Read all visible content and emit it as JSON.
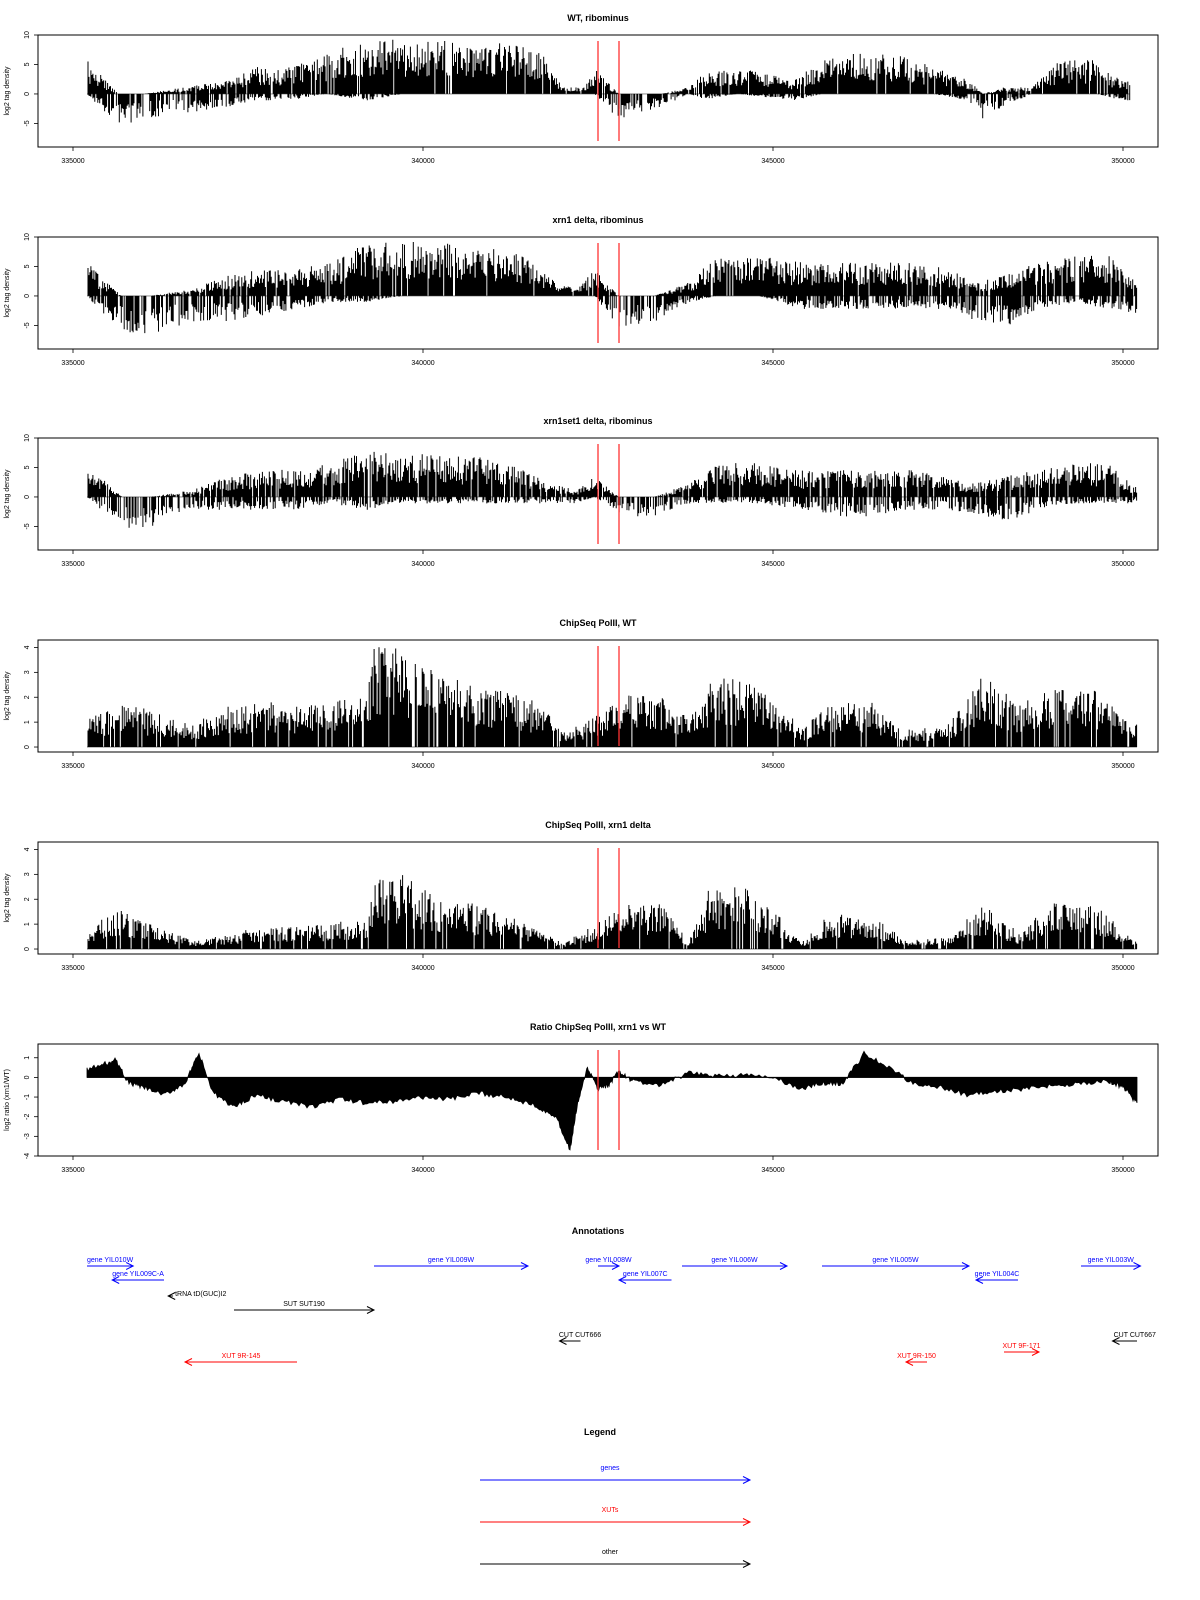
{
  "chart_data": [
    {
      "type": "bar",
      "title": "WT, ribominus",
      "ylabel": "log2 tag density",
      "xlabel": "",
      "xlim": [
        334500,
        350500
      ],
      "ylim": [
        -9,
        10
      ],
      "yticks": [
        -5,
        0,
        5,
        10
      ],
      "xticks": [
        335000,
        340000,
        345000,
        350000
      ],
      "marker_lines": [
        342500,
        342800
      ],
      "profile": [
        [
          335200,
          5,
          0
        ],
        [
          335650,
          0,
          -5
        ],
        [
          336000,
          0,
          -4
        ],
        [
          337200,
          2,
          -2
        ],
        [
          337600,
          4,
          -1
        ],
        [
          338100,
          4,
          -1
        ],
        [
          338600,
          6,
          0
        ],
        [
          339200,
          8,
          -1
        ],
        [
          339700,
          8,
          0
        ],
        [
          340300,
          8,
          0
        ],
        [
          340800,
          7,
          0
        ],
        [
          341200,
          8,
          0
        ],
        [
          341700,
          6,
          0
        ],
        [
          342000,
          1,
          0
        ],
        [
          342300,
          1,
          0
        ],
        [
          342450,
          4,
          0
        ],
        [
          342800,
          0,
          -4
        ],
        [
          343400,
          0,
          -2
        ],
        [
          343800,
          1,
          0
        ],
        [
          344000,
          3,
          -1
        ],
        [
          344500,
          4,
          0
        ],
        [
          345300,
          2,
          -1
        ],
        [
          345700,
          5,
          0
        ],
        [
          346200,
          6,
          0
        ],
        [
          346700,
          6,
          0
        ],
        [
          347300,
          4,
          0
        ],
        [
          347800,
          2,
          -1
        ],
        [
          348000,
          0,
          -4
        ],
        [
          348300,
          1,
          -2
        ],
        [
          348700,
          1,
          0
        ],
        [
          349100,
          5,
          0
        ],
        [
          349600,
          5,
          0
        ],
        [
          350000,
          2,
          -1
        ]
      ]
    },
    {
      "type": "bar",
      "title": "xrn1 delta, ribominus",
      "ylabel": "log2 tag density",
      "xlabel": "",
      "xlim": [
        334500,
        350500
      ],
      "ylim": [
        -9,
        10
      ],
      "yticks": [
        -5,
        0,
        5,
        10
      ],
      "xticks": [
        335000,
        340000,
        345000,
        350000
      ],
      "marker_lines": [
        342500,
        342800
      ],
      "profile": [
        [
          335200,
          5,
          0
        ],
        [
          335700,
          0,
          -6
        ],
        [
          336100,
          0,
          -6
        ],
        [
          336700,
          1,
          -4
        ],
        [
          337200,
          3,
          -4
        ],
        [
          337700,
          4,
          -3
        ],
        [
          338200,
          4,
          -2
        ],
        [
          338700,
          5,
          -1
        ],
        [
          339200,
          8,
          -1
        ],
        [
          339700,
          8,
          0
        ],
        [
          340300,
          8,
          0
        ],
        [
          340800,
          7,
          0
        ],
        [
          341300,
          7,
          0
        ],
        [
          341900,
          2,
          0
        ],
        [
          342200,
          1,
          0
        ],
        [
          342450,
          4,
          0
        ],
        [
          342800,
          0,
          -5
        ],
        [
          343300,
          0,
          -4
        ],
        [
          343800,
          2,
          -1
        ],
        [
          344200,
          6,
          0
        ],
        [
          344800,
          6,
          0
        ],
        [
          345400,
          5,
          -2
        ],
        [
          345900,
          5,
          -2
        ],
        [
          346400,
          5,
          -2
        ],
        [
          347000,
          5,
          -2
        ],
        [
          347500,
          4,
          -2
        ],
        [
          347900,
          2,
          -4
        ],
        [
          348300,
          3,
          -5
        ],
        [
          348800,
          5,
          -2
        ],
        [
          349300,
          6,
          -1
        ],
        [
          349800,
          6,
          -2
        ],
        [
          350100,
          3,
          -3
        ]
      ]
    },
    {
      "type": "bar",
      "title": "xrn1set1 delta, ribominus",
      "ylabel": "log2 tag density",
      "xlabel": "",
      "xlim": [
        334500,
        350500
      ],
      "ylim": [
        -9,
        10
      ],
      "yticks": [
        -5,
        0,
        5,
        10
      ],
      "xticks": [
        335000,
        340000,
        345000,
        350000
      ],
      "marker_lines": [
        342500,
        342800
      ],
      "profile": [
        [
          335200,
          5,
          0
        ],
        [
          335700,
          0,
          -5
        ],
        [
          336100,
          0,
          -5
        ],
        [
          336700,
          1,
          -2
        ],
        [
          337200,
          3,
          -2
        ],
        [
          337700,
          4,
          -2
        ],
        [
          338200,
          4,
          -2
        ],
        [
          338700,
          5,
          -1
        ],
        [
          339200,
          7,
          -2
        ],
        [
          339700,
          7,
          -1
        ],
        [
          340300,
          6,
          -1
        ],
        [
          340800,
          6,
          -1
        ],
        [
          341300,
          5,
          -1
        ],
        [
          341800,
          2,
          -1
        ],
        [
          342200,
          1,
          -1
        ],
        [
          342450,
          3,
          0
        ],
        [
          342800,
          0,
          -3
        ],
        [
          343300,
          0,
          -3
        ],
        [
          343800,
          2,
          -1
        ],
        [
          344200,
          5,
          -1
        ],
        [
          344800,
          5,
          -1
        ],
        [
          345400,
          4,
          -2
        ],
        [
          345900,
          4,
          -3
        ],
        [
          346400,
          4,
          -3
        ],
        [
          347000,
          4,
          -2
        ],
        [
          347500,
          3,
          -2
        ],
        [
          347900,
          2,
          -3
        ],
        [
          348300,
          3,
          -4
        ],
        [
          348800,
          4,
          -2
        ],
        [
          349300,
          5,
          -1
        ],
        [
          349800,
          5,
          -1
        ],
        [
          350100,
          2,
          -1
        ]
      ]
    },
    {
      "type": "bar",
      "title": "ChipSeq PolII, WT",
      "ylabel": "log2 tag density",
      "xlabel": "",
      "xlim": [
        334500,
        350500
      ],
      "ylim": [
        -0.2,
        4.3
      ],
      "yticks": [
        0,
        1,
        2,
        3,
        4
      ],
      "xticks": [
        335000,
        340000,
        345000,
        350000
      ],
      "marker_lines": [
        342500,
        342800
      ],
      "profile": [
        [
          335200,
          1,
          0
        ],
        [
          335700,
          1.6,
          0
        ],
        [
          336200,
          1.2,
          0
        ],
        [
          336700,
          0.8,
          0
        ],
        [
          337200,
          1.4,
          0
        ],
        [
          337700,
          1.6,
          0
        ],
        [
          338200,
          1.5,
          0
        ],
        [
          338700,
          1.6,
          0
        ],
        [
          339200,
          1.8,
          0
        ],
        [
          339300,
          3.6,
          0
        ],
        [
          339700,
          3.4,
          0
        ],
        [
          340200,
          2.6,
          0
        ],
        [
          340700,
          2.2,
          0
        ],
        [
          341200,
          2,
          0
        ],
        [
          341700,
          1.5,
          0
        ],
        [
          342000,
          0.5,
          0
        ],
        [
          342400,
          1,
          0
        ],
        [
          342900,
          1.8,
          0
        ],
        [
          343400,
          1.8,
          0
        ],
        [
          343800,
          1,
          0
        ],
        [
          344100,
          2.4,
          0
        ],
        [
          344600,
          2.4,
          0
        ],
        [
          345100,
          1.6,
          0
        ],
        [
          345400,
          0.6,
          0
        ],
        [
          345800,
          1.5,
          0
        ],
        [
          346400,
          1.6,
          0
        ],
        [
          346900,
          0.6,
          0
        ],
        [
          347500,
          0.8,
          0
        ],
        [
          348000,
          2.5,
          0
        ],
        [
          348500,
          1.6,
          0
        ],
        [
          349000,
          2,
          0
        ],
        [
          349600,
          2,
          0
        ],
        [
          350100,
          1,
          0
        ]
      ]
    },
    {
      "type": "bar",
      "title": "ChipSeq PolII, xrn1 delta",
      "ylabel": "log2 tag density",
      "xlabel": "",
      "xlim": [
        334500,
        350500
      ],
      "ylim": [
        -0.2,
        4.3
      ],
      "yticks": [
        0,
        1,
        2,
        3,
        4
      ],
      "xticks": [
        335000,
        340000,
        345000,
        350000
      ],
      "marker_lines": [
        342500,
        342800
      ],
      "profile": [
        [
          335200,
          0.8,
          0
        ],
        [
          335700,
          1.4,
          0
        ],
        [
          336200,
          0.8,
          0
        ],
        [
          336700,
          0.3,
          0
        ],
        [
          337200,
          0.5,
          0
        ],
        [
          337700,
          0.8,
          0
        ],
        [
          338200,
          0.8,
          0
        ],
        [
          338700,
          0.9,
          0
        ],
        [
          339200,
          1.2,
          0
        ],
        [
          339300,
          2.4,
          0
        ],
        [
          339700,
          2.6,
          0
        ],
        [
          340200,
          1.8,
          0
        ],
        [
          340700,
          1.6,
          0
        ],
        [
          341200,
          1.2,
          0
        ],
        [
          341700,
          0.6,
          0
        ],
        [
          342000,
          0.2,
          0
        ],
        [
          342400,
          0.8,
          0
        ],
        [
          342900,
          1.6,
          0
        ],
        [
          343400,
          1.6,
          0
        ],
        [
          343800,
          0.3,
          0
        ],
        [
          344100,
          2.2,
          0
        ],
        [
          344600,
          2.2,
          0
        ],
        [
          345100,
          1.2,
          0
        ],
        [
          345400,
          0.2,
          0
        ],
        [
          345800,
          1.2,
          0
        ],
        [
          346400,
          1.2,
          0
        ],
        [
          346900,
          0.3,
          0
        ],
        [
          347500,
          0.4,
          0
        ],
        [
          348000,
          1.6,
          0
        ],
        [
          348500,
          0.6,
          0
        ],
        [
          349000,
          1.6,
          0
        ],
        [
          349600,
          1.6,
          0
        ],
        [
          350100,
          0.4,
          0
        ]
      ]
    },
    {
      "type": "area",
      "title": "Ratio ChipSeq PolII, xrn1 vs WT",
      "ylabel": "log2 ratio (xrn1/WT)",
      "xlabel": "",
      "xlim": [
        334500,
        350500
      ],
      "ylim": [
        -4,
        1.7
      ],
      "yticks": [
        -4,
        -3,
        -2,
        -1,
        0,
        1
      ],
      "xticks": [
        335000,
        340000,
        345000,
        350000
      ],
      "marker_lines": [
        342500,
        342800
      ],
      "x": [
        335200,
        335400,
        335600,
        335800,
        336000,
        336300,
        336600,
        336800,
        337000,
        337300,
        337600,
        338000,
        338400,
        338800,
        339200,
        339600,
        340000,
        340400,
        340800,
        341200,
        341600,
        341900,
        342100,
        342200,
        342350,
        342500,
        342650,
        342800,
        343000,
        343400,
        343800,
        344200,
        344600,
        345000,
        345400,
        345700,
        346000,
        346300,
        346600,
        347000,
        347400,
        347800,
        348200,
        348600,
        349000,
        349400,
        349800,
        350000,
        350200
      ],
      "y": [
        0.4,
        0.6,
        0.9,
        -0.3,
        -0.5,
        -0.9,
        -0.3,
        1.2,
        -0.8,
        -1.5,
        -0.9,
        -1.2,
        -1.5,
        -1.1,
        -1.3,
        -1.2,
        -1.0,
        -1.1,
        -0.8,
        -1.0,
        -1.4,
        -2.0,
        -3.7,
        -1.5,
        0.5,
        -0.6,
        -0.4,
        0.3,
        -0.2,
        -0.4,
        0.2,
        0.1,
        0.1,
        0.0,
        -0.6,
        -0.3,
        -0.3,
        1.2,
        0.6,
        -0.3,
        -0.5,
        -0.9,
        -0.7,
        -0.6,
        -0.4,
        -0.3,
        -0.2,
        -0.5,
        -1.3
      ]
    }
  ],
  "annotations": {
    "title": "Annotations",
    "features": [
      {
        "label": "gene YIL010W",
        "start": 335200,
        "end": 335860,
        "strand": "+",
        "color": "#0000ff"
      },
      {
        "label": "gene YIL009C-A",
        "start": 335560,
        "end": 336300,
        "strand": "-",
        "color": "#0000ff"
      },
      {
        "label": "tRNA tD(GUC)I2",
        "start": 336360,
        "end": 336430,
        "strand": "-",
        "color": "#000000"
      },
      {
        "label": "SUT SUT190",
        "start": 337300,
        "end": 339300,
        "strand": "+",
        "color": "#000000"
      },
      {
        "label": "XUT 9R-145",
        "start": 336600,
        "end": 338200,
        "strand": "-",
        "color": "#ff0000"
      },
      {
        "label": "gene YIL009W",
        "start": 339300,
        "end": 341500,
        "strand": "+",
        "color": "#0000ff"
      },
      {
        "label": "gene YIL008W",
        "start": 342500,
        "end": 342800,
        "strand": "+",
        "color": "#0000ff"
      },
      {
        "label": "gene YIL007C",
        "start": 342800,
        "end": 343550,
        "strand": "-",
        "color": "#0000ff"
      },
      {
        "label": "CUT CUT666",
        "start": 341950,
        "end": 342250,
        "strand": "-",
        "color": "#000000"
      },
      {
        "label": "gene YIL006W",
        "start": 343700,
        "end": 345200,
        "strand": "+",
        "color": "#0000ff"
      },
      {
        "label": "gene YIL005W",
        "start": 345700,
        "end": 347800,
        "strand": "+",
        "color": "#0000ff"
      },
      {
        "label": "gene YIL004C",
        "start": 347900,
        "end": 348500,
        "strand": "-",
        "color": "#0000ff"
      },
      {
        "label": "XUT 9R-150",
        "start": 346900,
        "end": 347200,
        "strand": "-",
        "color": "#ff0000"
      },
      {
        "label": "XUT 9F-171",
        "start": 348300,
        "end": 348800,
        "strand": "+",
        "color": "#ff0000"
      },
      {
        "label": "gene YIL003W",
        "start": 349400,
        "end": 350250,
        "strand": "+",
        "color": "#0000ff"
      },
      {
        "label": "CUT CUT667",
        "start": 349850,
        "end": 350200,
        "strand": "-",
        "color": "#000000"
      }
    ]
  },
  "legend": {
    "title": "Legend",
    "items": [
      {
        "label": "genes",
        "color": "#0000ff"
      },
      {
        "label": "XUTs",
        "color": "#ff0000"
      },
      {
        "label": "other",
        "color": "#000000"
      }
    ]
  },
  "colors": {
    "marker": "#ff3333",
    "bars": "#000000",
    "baseline": "#999999",
    "frame": "#000000"
  }
}
